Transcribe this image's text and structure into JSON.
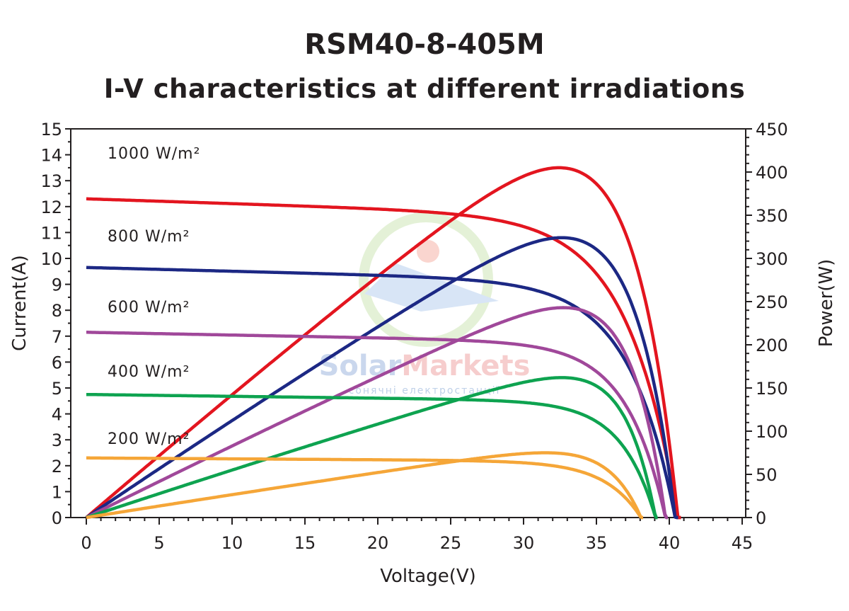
{
  "chart_data": {
    "type": "line",
    "title": "RSM40-8-405M",
    "subtitle": "I-V characteristics at different irradiations",
    "xlabel": "Voltage(V)",
    "ylabel": "Current(A)",
    "y2label": "Power(W)",
    "xlim": [
      0,
      45
    ],
    "ylim": [
      0,
      15
    ],
    "y2lim": [
      0,
      450
    ],
    "xticks": [
      "0",
      "5",
      "10",
      "15",
      "20",
      "25",
      "30",
      "35",
      "40",
      "45"
    ],
    "yticks": [
      "0",
      "1",
      "2",
      "3",
      "4",
      "5",
      "6",
      "7",
      "8",
      "9",
      "10",
      "11",
      "12",
      "13",
      "14",
      "15"
    ],
    "y2ticks": [
      "0",
      "50",
      "100",
      "150",
      "200",
      "250",
      "300",
      "350",
      "400",
      "450"
    ],
    "grid": false,
    "watermark": {
      "name": "SolarMarkets",
      "tagline": "сонячні електростанції"
    },
    "series": [
      {
        "name": "1000 W/m²",
        "color": "#e3151f",
        "isc": 12.3,
        "voc": 40.8,
        "vmp": 33.2,
        "imp": 12.2,
        "pmax": 405
      },
      {
        "name": "800 W/m²",
        "color": "#1c2884",
        "isc": 9.65,
        "voc": 40.6,
        "vmp": 33.2,
        "imp": 9.7,
        "pmax": 324
      },
      {
        "name": "600 W/m²",
        "color": "#a0489a",
        "isc": 7.15,
        "voc": 39.9,
        "vmp": 33.2,
        "imp": 7.3,
        "pmax": 243
      },
      {
        "name": "400 W/m²",
        "color": "#0ea350",
        "isc": 4.75,
        "voc": 39.2,
        "vmp": 33.0,
        "imp": 4.9,
        "pmax": 162
      },
      {
        "name": "200 W/m²",
        "color": "#f5a638",
        "isc": 2.3,
        "voc": 38.2,
        "vmp": 32.5,
        "imp": 2.3,
        "pmax": 75
      }
    ]
  }
}
